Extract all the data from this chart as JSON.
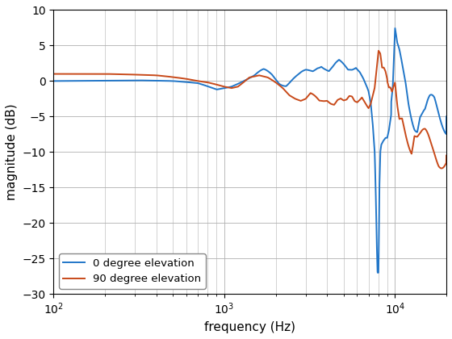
{
  "title": "",
  "xlabel": "frequency (Hz)",
  "ylabel": "magnitude (dB)",
  "xlim": [
    100,
    20000
  ],
  "ylim": [
    -30,
    10
  ],
  "yticks": [
    -30,
    -25,
    -20,
    -15,
    -10,
    -5,
    0,
    5,
    10
  ],
  "legend_labels": [
    "0 degree elevation",
    "90 degree elevation"
  ],
  "line_colors": [
    "#2176C8",
    "#C84A1A"
  ],
  "line_width": 1.4,
  "background_color": "#ffffff",
  "grid_color": "#b0b0b0"
}
